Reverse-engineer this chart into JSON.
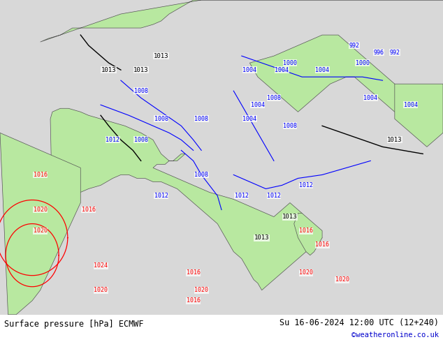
{
  "title_left": "Surface pressure [hPa] ECMWF",
  "title_right": "Su 16-06-2024 12:00 UTC (12+240)",
  "copyright": "©weatheronline.co.uk",
  "copyright_color": "#0000cc",
  "bg_color": "#d0d0d0",
  "land_color": "#b8e8a0",
  "ocean_color": "#d8d8d8",
  "isobar_blue_color": "#0000ff",
  "isobar_red_color": "#ff0000",
  "isobar_black_color": "#000000",
  "footer_bg": "#ffffff",
  "footer_text_color": "#000000",
  "fig_width": 6.34,
  "fig_height": 4.9,
  "dpi": 100
}
